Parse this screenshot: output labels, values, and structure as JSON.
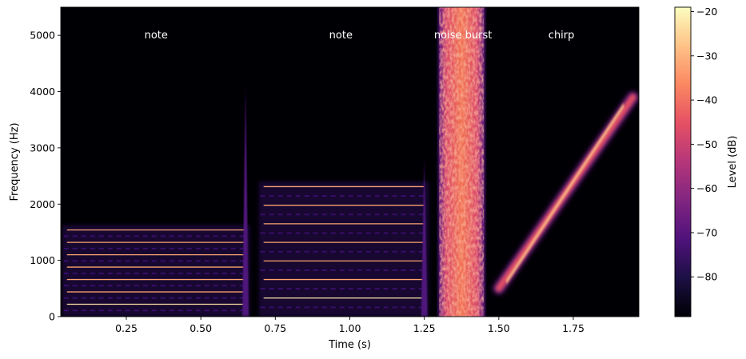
{
  "chart_data": {
    "type": "heatmap",
    "subtype": "spectrogram",
    "title": "",
    "xlabel": "Time (s)",
    "ylabel": "Frequency (Hz)",
    "xlim": [
      0.03,
      1.97
    ],
    "ylim": [
      0,
      5500
    ],
    "x_ticks": [
      0.25,
      0.5,
      0.75,
      1.0,
      1.25,
      1.5,
      1.75
    ],
    "x_tick_labels": [
      "0.25",
      "0.50",
      "0.75",
      "1.00",
      "1.25",
      "1.50",
      "1.75"
    ],
    "y_ticks": [
      0,
      1000,
      2000,
      3000,
      4000,
      5000
    ],
    "y_tick_labels": [
      "0",
      "1000",
      "2000",
      "3000",
      "4000",
      "5000"
    ],
    "colormap": "magma",
    "colorbar": {
      "label": "Level (dB)",
      "range": [
        -89,
        -19
      ],
      "ticks": [
        -80,
        -70,
        -60,
        -50,
        -40,
        -30,
        -20
      ],
      "tick_labels": [
        "−80",
        "−70",
        "−60",
        "−50",
        "−40",
        "−30",
        "−20"
      ]
    },
    "events": [
      {
        "label": "note",
        "label_pos": {
          "t": 0.35,
          "f": 5000
        },
        "kind": "harmonic",
        "t_start": 0.04,
        "t_end": 0.66,
        "fundamental_hz": 220,
        "harmonics_hz": [
          220,
          440,
          660,
          880,
          1100,
          1320,
          1540
        ]
      },
      {
        "label": "note",
        "label_pos": {
          "t": 0.97,
          "f": 5000
        },
        "kind": "harmonic",
        "t_start": 0.7,
        "t_end": 1.26,
        "fundamental_hz": 330,
        "harmonics_hz": [
          330,
          660,
          990,
          1320,
          1650,
          1980,
          2310
        ]
      },
      {
        "label": "noise burst",
        "label_pos": {
          "t": 1.38,
          "f": 5000
        },
        "kind": "noise",
        "t_start": 1.3,
        "t_end": 1.45,
        "f_low": 0,
        "f_high": 5500
      },
      {
        "label": "chirp",
        "label_pos": {
          "t": 1.71,
          "f": 5000
        },
        "kind": "chirp",
        "t_start": 1.5,
        "t_end": 1.95,
        "f_start_hz": 500,
        "f_end_hz": 3900
      }
    ],
    "transient_clicks": [
      {
        "t": 0.65,
        "f_top_hz": 4100
      },
      {
        "t": 1.25,
        "f_top_hz": 2800
      }
    ],
    "background_db": -89
  }
}
